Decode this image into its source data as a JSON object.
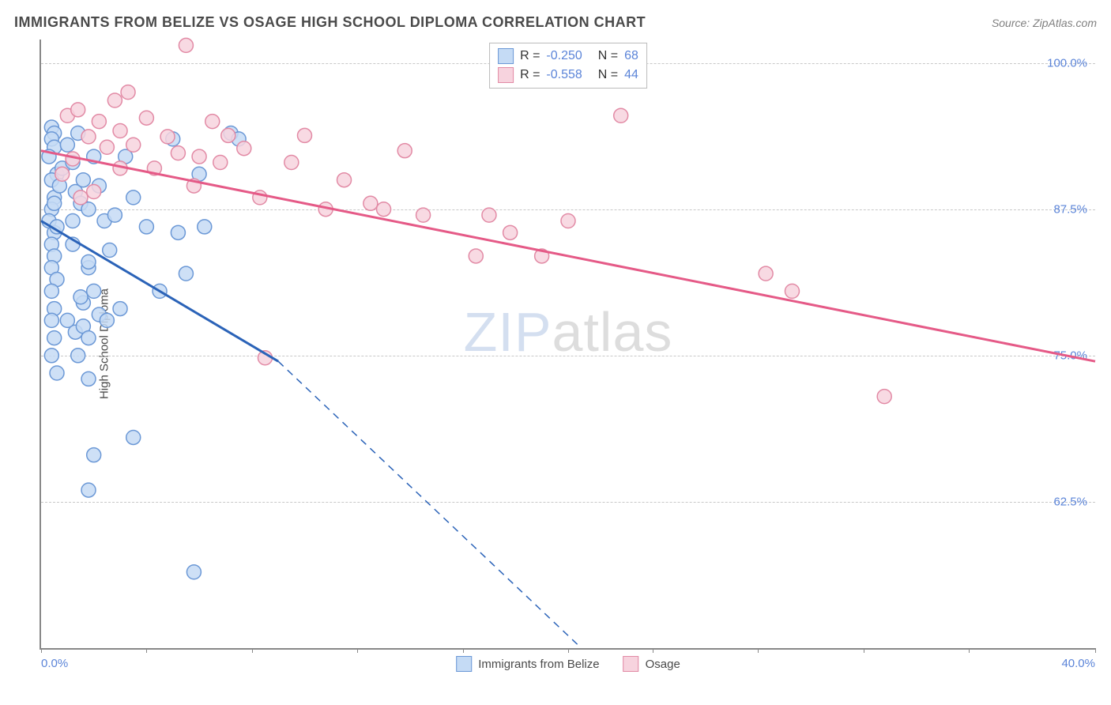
{
  "title": "IMMIGRANTS FROM BELIZE VS OSAGE HIGH SCHOOL DIPLOMA CORRELATION CHART",
  "source_label": "Source: ZipAtlas.com",
  "y_axis_label": "High School Diploma",
  "watermark": {
    "part1": "ZIP",
    "part2": "atlas"
  },
  "chart": {
    "type": "scatter",
    "xlim": [
      0,
      40
    ],
    "ylim": [
      50,
      102
    ],
    "x_ticks_pct": [
      0,
      10,
      20,
      30,
      40,
      50,
      58,
      68,
      78,
      88,
      100
    ],
    "x_tick_labels": {
      "0": "0.0%",
      "100": "40.0%"
    },
    "y_gridlines": [
      62.5,
      75.0,
      87.5,
      100.0
    ],
    "y_tick_labels": [
      "62.5%",
      "75.0%",
      "87.5%",
      "100.0%"
    ],
    "grid_color": "#c8c8c8",
    "background_color": "#ffffff",
    "axis_color": "#888888",
    "label_color_axis": "#5b84d8",
    "series": [
      {
        "name": "Immigrants from Belize",
        "R": "-0.250",
        "N": "68",
        "marker_fill": "#c5dbf5",
        "marker_stroke": "#6b98d6",
        "line_color": "#2b63b8",
        "line_solid_until_x": 9.0,
        "line_dash_until_x": 20.5,
        "line_y_start": 86.5,
        "line_y_mid": 74.5,
        "line_y_end": 50.0,
        "points": [
          [
            0.4,
            94.5
          ],
          [
            0.5,
            94.0
          ],
          [
            0.4,
            93.5
          ],
          [
            0.5,
            92.8
          ],
          [
            0.3,
            92.0
          ],
          [
            0.6,
            90.5
          ],
          [
            0.4,
            90.0
          ],
          [
            0.5,
            88.5
          ],
          [
            0.8,
            91.0
          ],
          [
            0.7,
            89.5
          ],
          [
            0.4,
            87.5
          ],
          [
            0.5,
            88.0
          ],
          [
            0.3,
            86.5
          ],
          [
            0.5,
            85.5
          ],
          [
            0.6,
            86.0
          ],
          [
            0.4,
            84.5
          ],
          [
            0.5,
            83.5
          ],
          [
            0.4,
            82.5
          ],
          [
            0.6,
            81.5
          ],
          [
            0.4,
            80.5
          ],
          [
            0.5,
            79.0
          ],
          [
            0.4,
            78.0
          ],
          [
            0.5,
            76.5
          ],
          [
            0.4,
            75.0
          ],
          [
            1.0,
            93.0
          ],
          [
            1.2,
            91.5
          ],
          [
            1.4,
            94.0
          ],
          [
            1.3,
            89.0
          ],
          [
            1.5,
            88.0
          ],
          [
            1.2,
            86.5
          ],
          [
            1.6,
            90.0
          ],
          [
            1.8,
            87.5
          ],
          [
            2.0,
            92.0
          ],
          [
            2.2,
            89.5
          ],
          [
            2.4,
            86.5
          ],
          [
            2.6,
            84.0
          ],
          [
            2.0,
            80.5
          ],
          [
            2.2,
            78.5
          ],
          [
            1.8,
            82.5
          ],
          [
            1.6,
            79.5
          ],
          [
            1.0,
            78.0
          ],
          [
            1.3,
            77.0
          ],
          [
            1.6,
            77.5
          ],
          [
            1.4,
            75.0
          ],
          [
            1.8,
            83.0
          ],
          [
            2.8,
            87.0
          ],
          [
            3.2,
            92.0
          ],
          [
            3.5,
            88.5
          ],
          [
            4.0,
            86.0
          ],
          [
            4.5,
            80.5
          ],
          [
            5.0,
            93.5
          ],
          [
            5.2,
            85.5
          ],
          [
            5.5,
            82.0
          ],
          [
            6.0,
            90.5
          ],
          [
            6.2,
            86.0
          ],
          [
            7.2,
            94.0
          ],
          [
            7.5,
            93.5
          ],
          [
            1.2,
            84.5
          ],
          [
            1.5,
            80.0
          ],
          [
            1.8,
            76.5
          ],
          [
            2.5,
            78.0
          ],
          [
            3.0,
            79.0
          ],
          [
            0.6,
            73.5
          ],
          [
            1.8,
            73.0
          ],
          [
            2.0,
            66.5
          ],
          [
            1.8,
            63.5
          ],
          [
            3.5,
            68.0
          ],
          [
            5.8,
            56.5
          ]
        ]
      },
      {
        "name": "Osage",
        "R": "-0.558",
        "N": "44",
        "marker_fill": "#f7d3de",
        "marker_stroke": "#e28aa5",
        "line_color": "#e55a87",
        "line_solid_until_x": 40.0,
        "line_y_start": 92.5,
        "line_y_end": 74.5,
        "points": [
          [
            1.0,
            95.5
          ],
          [
            1.4,
            96.0
          ],
          [
            1.8,
            93.7
          ],
          [
            2.2,
            95.0
          ],
          [
            2.5,
            92.8
          ],
          [
            2.8,
            96.8
          ],
          [
            3.0,
            94.2
          ],
          [
            3.5,
            93.0
          ],
          [
            3.3,
            97.5
          ],
          [
            4.0,
            95.3
          ],
          [
            4.3,
            91.0
          ],
          [
            4.8,
            93.7
          ],
          [
            5.2,
            92.3
          ],
          [
            5.5,
            101.5
          ],
          [
            5.8,
            89.5
          ],
          [
            6.0,
            92.0
          ],
          [
            6.5,
            95.0
          ],
          [
            6.8,
            91.5
          ],
          [
            7.1,
            93.8
          ],
          [
            7.7,
            92.7
          ],
          [
            8.3,
            88.5
          ],
          [
            9.5,
            91.5
          ],
          [
            10.0,
            93.8
          ],
          [
            10.8,
            87.5
          ],
          [
            11.5,
            90.0
          ],
          [
            12.5,
            88.0
          ],
          [
            13.0,
            87.5
          ],
          [
            13.8,
            92.5
          ],
          [
            14.5,
            87.0
          ],
          [
            16.5,
            83.5
          ],
          [
            17.0,
            87.0
          ],
          [
            17.8,
            85.5
          ],
          [
            19.0,
            83.5
          ],
          [
            20.0,
            86.5
          ],
          [
            22.0,
            95.5
          ],
          [
            8.5,
            74.8
          ],
          [
            27.5,
            82.0
          ],
          [
            28.5,
            80.5
          ],
          [
            32.0,
            71.5
          ],
          [
            3.0,
            91.0
          ],
          [
            2.0,
            89.0
          ],
          [
            1.5,
            88.5
          ],
          [
            0.8,
            90.5
          ],
          [
            1.2,
            91.8
          ]
        ]
      }
    ],
    "bottom_legend": [
      {
        "label": "Immigrants from Belize",
        "fill": "#c5dbf5",
        "stroke": "#6b98d6"
      },
      {
        "label": "Osage",
        "fill": "#f7d3de",
        "stroke": "#e28aa5"
      }
    ]
  }
}
